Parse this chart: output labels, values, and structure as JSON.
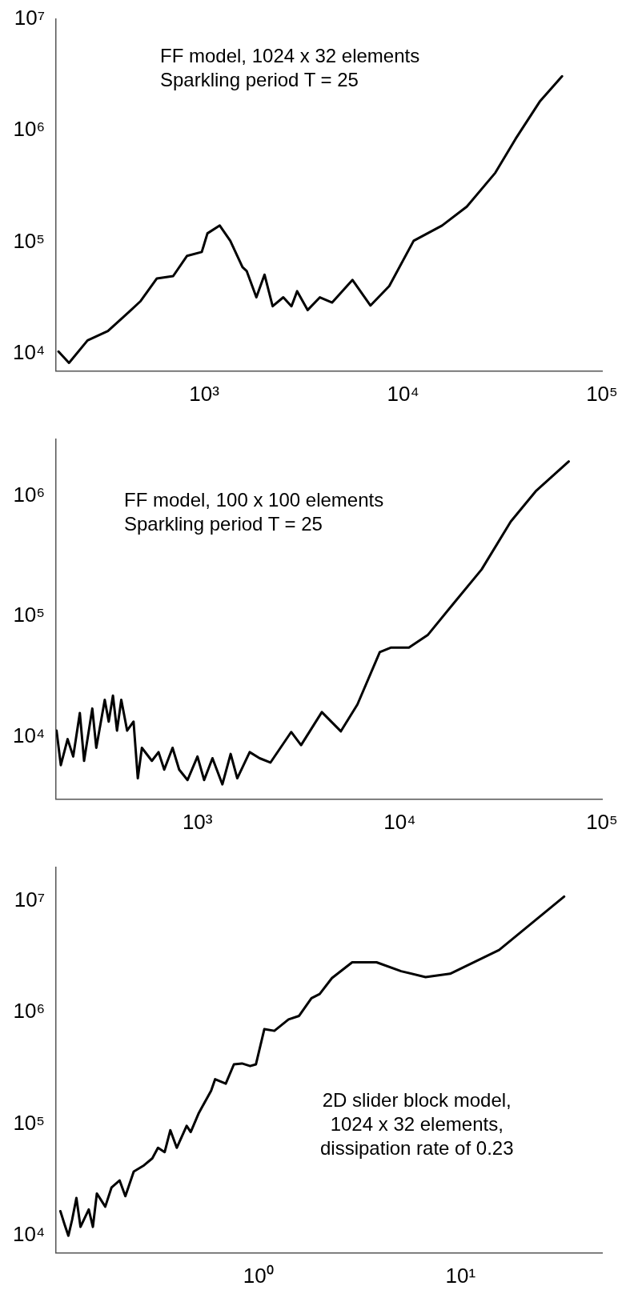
{
  "chart_data": [
    {
      "type": "line",
      "log": "xy",
      "annotations": [
        "FF model, 1024 x 32 elements\nSparkling period T = 25"
      ],
      "x": [
        185,
        209,
        259,
        328,
        416,
        479,
        578,
        698,
        820,
        972,
        1038,
        1197,
        1352,
        1558,
        1634,
        1829,
        2010,
        2208,
        2498,
        2746,
        2933,
        3313,
        3817,
        4398,
        5567,
        6855,
        8517,
        11300,
        15700,
        20900,
        29100,
        36800,
        48900,
        63000
      ],
      "values": [
        10500,
        8300,
        13200,
        16000,
        23500,
        29700,
        47400,
        49700,
        75500,
        81700,
        120000,
        141000,
        103000,
        59800,
        55300,
        32100,
        51200,
        26700,
        32100,
        26700,
        36400,
        24700,
        32100,
        28800,
        45900,
        27100,
        40500,
        103000,
        141000,
        208000,
        419000,
        844000,
        1840000,
        3060000
      ],
      "color": "#000000",
      "xlim": [
        180,
        100000
      ],
      "ylim": [
        7000,
        10000000
      ],
      "xticks": [
        {
          "value": 1000,
          "label": "10³"
        },
        {
          "value": 10000,
          "label": "10⁴"
        },
        {
          "value": 100000,
          "label": "10⁵"
        }
      ],
      "yticks": [
        {
          "value": 10000,
          "label": "10⁴"
        },
        {
          "value": 100000,
          "label": "10⁵"
        },
        {
          "value": 1000000,
          "label": "10⁶"
        },
        {
          "value": 10000000,
          "label": "10⁷"
        }
      ]
    },
    {
      "type": "line",
      "log": "xy",
      "annotations": [
        "FF model, 100 x 100 elements\nSparkling period T = 25"
      ],
      "x": [
        201,
        211,
        228,
        243,
        262,
        275,
        302,
        316,
        348,
        364,
        382,
        400,
        420,
        449,
        483,
        507,
        531,
        595,
        642,
        685,
        753,
        812,
        893,
        1000,
        1079,
        1186,
        1328,
        1459,
        1573,
        1812,
        2029,
        2294,
        2906,
        3253,
        4120,
        5117,
        6180,
        7970,
        9020,
        11100,
        13800,
        18300,
        25400,
        35400,
        47000,
        68500
      ],
      "values": [
        11200,
        5770,
        9510,
        6810,
        15700,
        6270,
        17100,
        8050,
        20200,
        13300,
        21900,
        11200,
        20200,
        11200,
        13300,
        4490,
        8050,
        6270,
        7410,
        5300,
        8050,
        5300,
        4340,
        6810,
        4340,
        6590,
        3990,
        7160,
        4490,
        7410,
        6590,
        6060,
        10900,
        8470,
        15960,
        11050,
        18500,
        50400,
        54900,
        54900,
        70400,
        126000,
        246000,
        617000,
        1100000,
        1950000
      ],
      "color": "#000000",
      "xlim": [
        200,
        100000
      ],
      "ylim": [
        3000,
        3000000
      ],
      "xticks": [
        {
          "value": 1000,
          "label": "10³"
        },
        {
          "value": 10000,
          "label": "10⁴"
        },
        {
          "value": 100000,
          "label": "10⁵"
        }
      ],
      "yticks": [
        {
          "value": 10000,
          "label": "10⁴"
        },
        {
          "value": 100000,
          "label": "10⁵"
        },
        {
          "value": 1000000,
          "label": "10⁶"
        }
      ]
    },
    {
      "type": "line",
      "log": "xy",
      "annotations": [
        "2D slider block model,\n1024 x 32 elements,\ndissipation rate of 0.23"
      ],
      "x": [
        0.105,
        0.11,
        0.115,
        0.12,
        0.126,
        0.132,
        0.145,
        0.152,
        0.159,
        0.175,
        0.188,
        0.206,
        0.22,
        0.242,
        0.272,
        0.299,
        0.319,
        0.344,
        0.367,
        0.395,
        0.442,
        0.463,
        0.508,
        0.584,
        0.611,
        0.69,
        0.757,
        0.83,
        0.911,
        0.973,
        1.07,
        1.2,
        1.41,
        1.59,
        1.83,
        2.01,
        2.31,
        2.91,
        3.84,
        5.08,
        6.71,
        8.87,
        15.5,
        32.5
      ],
      "values": [
        16600,
        12700,
        10000,
        13900,
        21800,
        12000,
        17200,
        12000,
        23900,
        18200,
        27100,
        31300,
        22600,
        37600,
        42700,
        49300,
        61300,
        56000,
        88100,
        61300,
        96400,
        84900,
        126000,
        199000,
        252000,
        230000,
        343000,
        349000,
        331000,
        343000,
        708000,
        684000,
        865000,
        931000,
        1340000,
        1460000,
        2030000,
        2810000,
        2810000,
        2340000,
        2070000,
        2220000,
        3620000,
        10900000
      ],
      "color": "#000000",
      "xlim": [
        0.1,
        50
      ],
      "ylim": [
        7000,
        20000000
      ],
      "xticks": [
        {
          "value": 1,
          "label": "10⁰"
        },
        {
          "value": 10,
          "label": "10¹"
        }
      ],
      "yticks": [
        {
          "value": 10000,
          "label": "10⁴"
        },
        {
          "value": 100000,
          "label": "10⁵"
        },
        {
          "value": 1000000,
          "label": "10⁶"
        },
        {
          "value": 10000000,
          "label": "10⁷"
        }
      ]
    }
  ]
}
